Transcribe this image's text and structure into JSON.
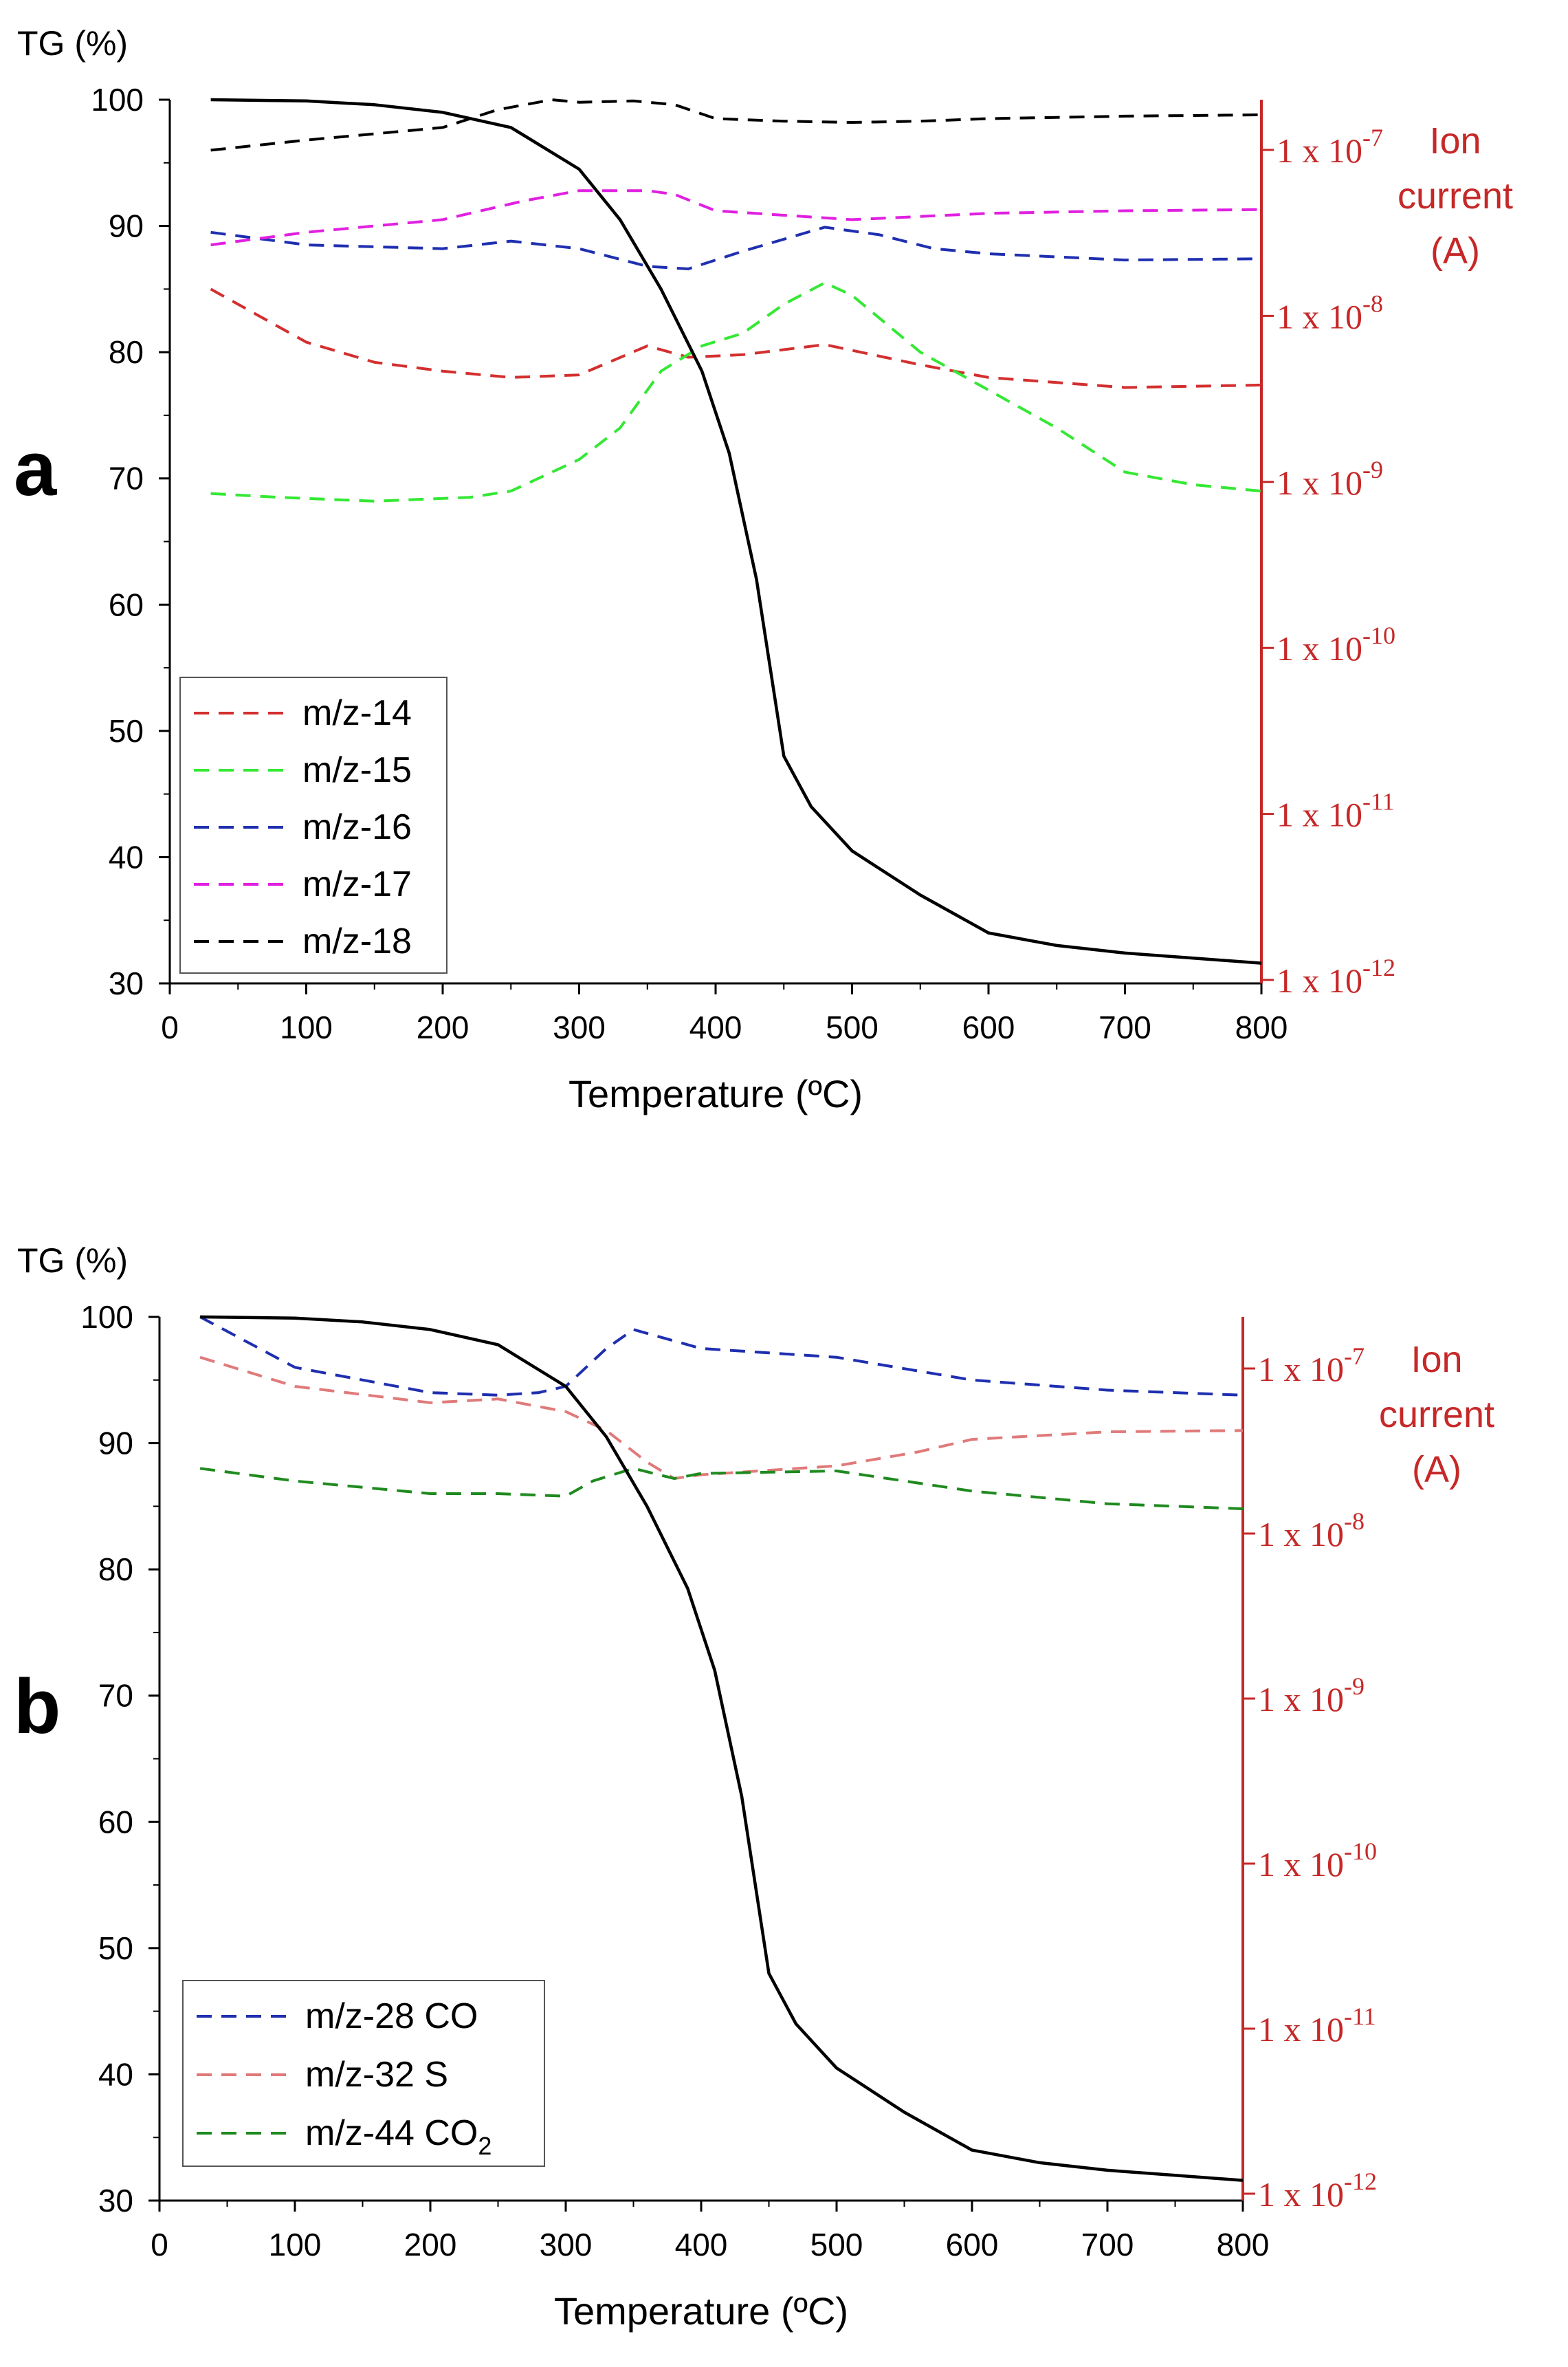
{
  "colors": {
    "red_axis": "#c62828",
    "tg": "#000000"
  },
  "chart_data": [
    {
      "type": "line",
      "panel_label": "a",
      "xlabel": "Temperature (ºC)",
      "ylabel": "TG (%)",
      "right_label_lines": [
        "Ion",
        "current",
        "(A)"
      ],
      "xlim": [
        0,
        800
      ],
      "ylim": [
        30,
        100
      ],
      "right_log_range": [
        -12,
        -7
      ],
      "x_ticks": [
        "0",
        "100",
        "200",
        "300",
        "400",
        "500",
        "600",
        "700",
        "800"
      ],
      "y_ticks": [
        "30",
        "40",
        "50",
        "60",
        "70",
        "80",
        "90",
        "100"
      ],
      "right_ticks": [
        {
          "base": "1 x 10",
          "exp": "-7",
          "log": -7
        },
        {
          "base": "1 x 10",
          "exp": "-8",
          "log": -8
        },
        {
          "base": "1 x 10",
          "exp": "-9",
          "log": -9
        },
        {
          "base": "1 x 10",
          "exp": "-10",
          "log": -10
        },
        {
          "base": "1 x 10",
          "exp": "-11",
          "log": -11
        },
        {
          "base": "1 x 10",
          "exp": "-12",
          "log": -12
        }
      ],
      "tg_curve": {
        "name": "TG",
        "color": "#000000",
        "x": [
          30,
          100,
          150,
          200,
          250,
          300,
          330,
          360,
          390,
          410,
          430,
          450,
          470,
          500,
          550,
          600,
          650,
          700,
          750,
          800
        ],
        "y": [
          100,
          99.9,
          99.6,
          99,
          97.8,
          94.5,
          90.5,
          85,
          78.5,
          72,
          62,
          48,
          44,
          40.5,
          37,
          34,
          33,
          32.4,
          32,
          31.6
        ]
      },
      "series": [
        {
          "name": "m/z-14",
          "color": "#d32f2f",
          "x": [
            30,
            100,
            150,
            200,
            250,
            300,
            350,
            380,
            420,
            480,
            550,
            600,
            650,
            700,
            750,
            800
          ],
          "y": [
            85,
            80.8,
            79.2,
            78.5,
            78,
            78.2,
            80.5,
            79.6,
            79.8,
            80.6,
            79,
            78,
            77.6,
            77.2,
            77.3,
            77.4
          ]
        },
        {
          "name": "m/z-15",
          "color": "#34e834",
          "x": [
            30,
            80,
            150,
            220,
            250,
            300,
            330,
            360,
            390,
            420,
            450,
            480,
            500,
            550,
            600,
            650,
            700,
            750,
            800
          ],
          "y": [
            68.8,
            68.5,
            68.2,
            68.5,
            69,
            71.5,
            74,
            78.5,
            80.5,
            81.5,
            83.8,
            85.5,
            84.5,
            80,
            77,
            74,
            70.5,
            69.5,
            69
          ]
        },
        {
          "name": "m/z-16",
          "color": "#1f2fb0",
          "x": [
            30,
            100,
            200,
            250,
            300,
            350,
            380,
            420,
            480,
            520,
            560,
            600,
            700,
            800
          ],
          "y": [
            89.5,
            88.5,
            88.2,
            88.8,
            88.2,
            86.8,
            86.6,
            88,
            89.9,
            89.3,
            88.2,
            87.8,
            87.3,
            87.4
          ]
        },
        {
          "name": "m/z-17",
          "color": "#e020e0",
          "x": [
            30,
            100,
            200,
            240,
            260,
            300,
            350,
            370,
            400,
            500,
            600,
            700,
            800
          ],
          "y": [
            88.5,
            89.5,
            90.5,
            91.5,
            92,
            92.8,
            92.8,
            92.5,
            91.2,
            90.5,
            91,
            91.2,
            91.3
          ]
        },
        {
          "name": "m/z-18",
          "color": "#000000",
          "x": [
            30,
            100,
            150,
            200,
            240,
            280,
            300,
            340,
            370,
            400,
            450,
            500,
            550,
            600,
            700,
            800
          ],
          "y": [
            96,
            96.8,
            97.3,
            97.8,
            99.2,
            100,
            99.8,
            99.9,
            99.6,
            98.5,
            98.3,
            98.2,
            98.3,
            98.5,
            98.7,
            98.8
          ]
        }
      ]
    },
    {
      "type": "line",
      "panel_label": "b",
      "xlabel": "Temperature (ºC)",
      "ylabel": "TG (%)",
      "right_label_lines": [
        "Ion",
        "current",
        "(A)"
      ],
      "xlim": [
        0,
        800
      ],
      "ylim": [
        30,
        100
      ],
      "right_log_range": [
        -12,
        -7
      ],
      "x_ticks": [
        "0",
        "100",
        "200",
        "300",
        "400",
        "500",
        "600",
        "700",
        "800"
      ],
      "y_ticks": [
        "30",
        "40",
        "50",
        "60",
        "70",
        "80",
        "90",
        "100"
      ],
      "right_ticks": [
        {
          "base": "1 x 10",
          "exp": "-7",
          "log": -7
        },
        {
          "base": "1 x 10",
          "exp": "-8",
          "log": -8
        },
        {
          "base": "1 x 10",
          "exp": "-9",
          "log": -9
        },
        {
          "base": "1 x 10",
          "exp": "-10",
          "log": -10
        },
        {
          "base": "1 x 10",
          "exp": "-11",
          "log": -11
        },
        {
          "base": "1 x 10",
          "exp": "-12",
          "log": -12
        }
      ],
      "tg_curve": {
        "name": "TG",
        "color": "#000000",
        "x": [
          30,
          100,
          150,
          200,
          250,
          300,
          330,
          360,
          390,
          410,
          430,
          450,
          470,
          500,
          550,
          600,
          650,
          700,
          750,
          800
        ],
        "y": [
          100,
          99.9,
          99.6,
          99,
          97.8,
          94.5,
          90.5,
          85,
          78.5,
          72,
          62,
          48,
          44,
          40.5,
          37,
          34,
          33,
          32.4,
          32,
          31.6
        ]
      },
      "series": [
        {
          "name": "m/z-28 CO",
          "color": "#1f2fb0",
          "x": [
            30,
            100,
            200,
            250,
            280,
            300,
            330,
            350,
            400,
            500,
            600,
            700,
            800
          ],
          "y": [
            100,
            96,
            94,
            93.8,
            94,
            94.5,
            97.5,
            99,
            97.5,
            96.8,
            95,
            94.2,
            93.8
          ]
        },
        {
          "name": "m/z-32 S",
          "color": "#e07a7a",
          "x": [
            30,
            100,
            200,
            250,
            300,
            330,
            360,
            380,
            400,
            500,
            560,
            600,
            650,
            700,
            800
          ],
          "y": [
            96.8,
            94.5,
            93.2,
            93.5,
            92.5,
            91,
            88.5,
            87.2,
            87.5,
            88.2,
            89.3,
            90.3,
            90.6,
            90.9,
            91
          ]
        },
        {
          "name": "m/z-44 CO2",
          "name_base": "m/z-44 CO",
          "name_sub": "2",
          "color": "#1f8a1f",
          "x": [
            30,
            100,
            200,
            250,
            300,
            320,
            350,
            380,
            400,
            500,
            550,
            600,
            700,
            800
          ],
          "y": [
            88,
            87,
            86,
            86,
            85.8,
            87,
            88,
            87.2,
            87.6,
            87.8,
            87,
            86.2,
            85.2,
            84.8
          ]
        }
      ]
    }
  ]
}
